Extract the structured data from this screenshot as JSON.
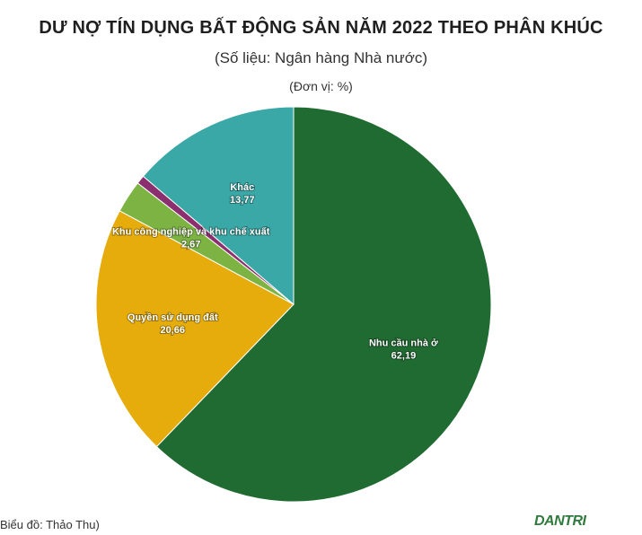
{
  "header": {
    "title": "DƯ NỢ TÍN DỤNG BẤT ĐỘNG SẢN NĂM 2022 THEO PHÂN KHÚC",
    "subtitle": "(Số liệu: Ngân hàng Nhà nước)",
    "unit": "(Đơn vị: %)"
  },
  "footer": {
    "credit": "Biểu đồ: Thảo Thu)",
    "brand": "DANTRI"
  },
  "chart_data": {
    "type": "pie",
    "title": "DƯ NỢ TÍN DỤNG BẤT ĐỘNG SẢN NĂM 2022 THEO PHÂN KHÚC",
    "subtitle": "(Số liệu: Ngân hàng Nhà nước)",
    "unit": "(Đơn vị: %)",
    "legend": "none",
    "slices": [
      {
        "label": "Nhu cầu nhà ở",
        "value": 62.19,
        "value_label": "62,19",
        "color": "#1f6b32"
      },
      {
        "label": "Quyền sử dụng đất",
        "value": 20.66,
        "value_label": "20,66",
        "color": "#e6ac0b"
      },
      {
        "label": "Khu công nghiệp và khu chế xuất",
        "value": 2.67,
        "value_label": "2,67",
        "color": "#7cb342"
      },
      {
        "label": "",
        "value": 0.71,
        "value_label": "",
        "color": "#8b2f6f"
      },
      {
        "label": "Khác",
        "value": 13.77,
        "value_label": "13,77",
        "color": "#3aa8a6"
      }
    ]
  }
}
